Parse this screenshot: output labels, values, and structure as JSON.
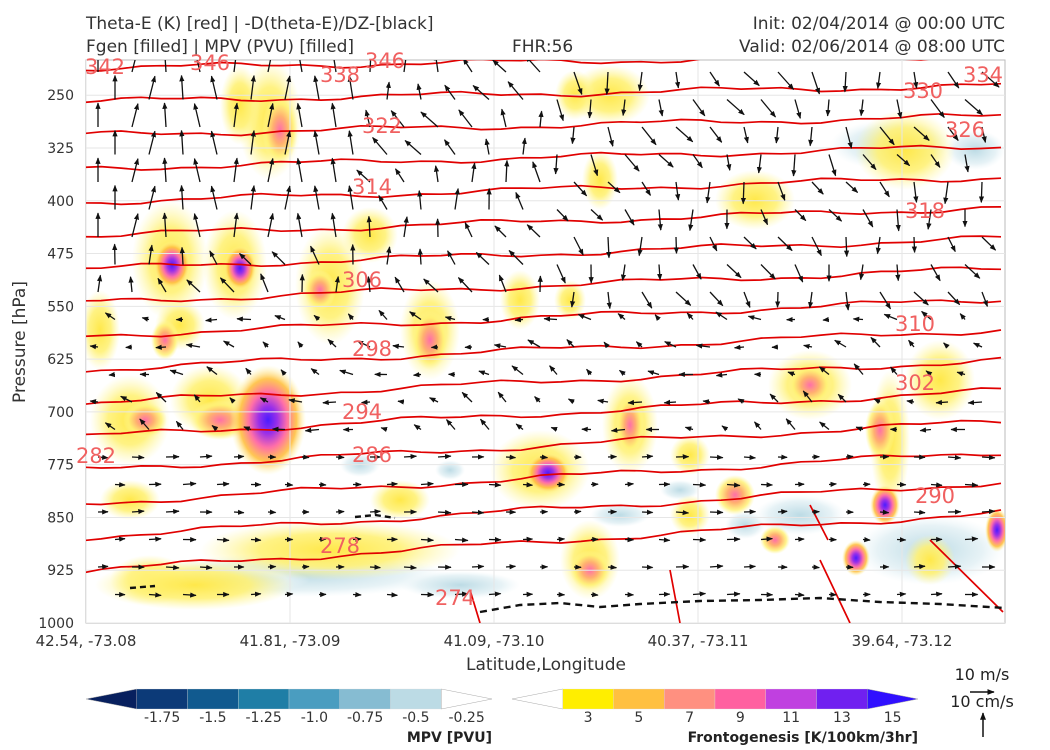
{
  "header": {
    "title_left_1": "Theta-E (K) [red] | -D(theta-E)/DZ-[black]",
    "title_left_2": "Fgen [filled] | MPV (PVU) [filled]",
    "fhr": "FHR:56",
    "init": "Init: 02/04/2014 @ 00:00 UTC",
    "valid": "Valid: 02/06/2014 @ 08:00 UTC"
  },
  "chart_data": {
    "type": "cross-section",
    "xlabel": "Latitude,Longitude",
    "ylabel": "Pressure [hPa]",
    "x_ticks": [
      "42.54, -73.08",
      "41.81, -73.09",
      "41.09, -73.10",
      "40.37, -73.11",
      "39.64, -73.12"
    ],
    "y_ticks": [
      250,
      325,
      400,
      475,
      550,
      625,
      700,
      775,
      850,
      925,
      1000
    ],
    "ylim": [
      1000,
      200
    ],
    "y_scale": "linear, inverted",
    "theta_e_contours": {
      "color": "#e00000",
      "labels": [
        "342",
        "346",
        "338",
        "346",
        "334",
        "330",
        "322",
        "326",
        "314",
        "318",
        "306",
        "310",
        "298",
        "302",
        "294",
        "286",
        "290",
        "282",
        "278",
        "274"
      ]
    },
    "wind_reference": {
      "u_label": "10 m/s",
      "w_label": "10 cm/s"
    },
    "mpv_colorbar": {
      "label": "MPV [PVU]",
      "ticks": [
        "-1.75",
        "-1.5",
        "-1.25",
        "-1.0",
        "-0.75",
        "-0.5",
        "-0.25"
      ],
      "colors": [
        "#08205e",
        "#0c3a78",
        "#115a8f",
        "#1f7ea6",
        "#4a9dc0",
        "#86bcd2",
        "#bcdbe5",
        "#ffffff"
      ]
    },
    "fgen_colorbar": {
      "label": "Frontogenesis [K/100km/3hr]",
      "ticks": [
        "3",
        "5",
        "7",
        "9",
        "11",
        "13",
        "15"
      ],
      "colors": [
        "#ffffff",
        "#ffee00",
        "#ffc040",
        "#ff9080",
        "#ff60a0",
        "#c040e0",
        "#7020f0",
        "#3010ff"
      ]
    }
  }
}
